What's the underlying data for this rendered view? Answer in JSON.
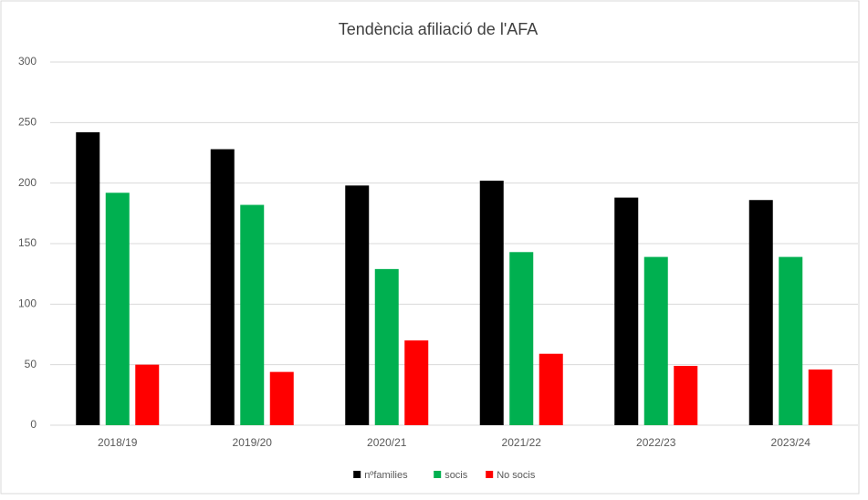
{
  "chart_data": {
    "type": "bar",
    "title": "Tendència afiliació de l'AFA",
    "categories": [
      "2018/19",
      "2019/20",
      "2020/21",
      "2021/22",
      "2022/23",
      "2023/24"
    ],
    "series": [
      {
        "name": "nºfamilies",
        "color": "#000000",
        "values": [
          242,
          228,
          198,
          202,
          188,
          186
        ]
      },
      {
        "name": "socis",
        "color": "#00b050",
        "values": [
          192,
          182,
          129,
          143,
          139,
          139
        ]
      },
      {
        "name": "No socis",
        "color": "#ff0000",
        "values": [
          50,
          44,
          70,
          59,
          49,
          46
        ]
      }
    ],
    "ylim": [
      0,
      300
    ],
    "yticks": [
      0,
      50,
      100,
      150,
      200,
      250,
      300
    ],
    "grid": true,
    "legend": "bottom"
  }
}
